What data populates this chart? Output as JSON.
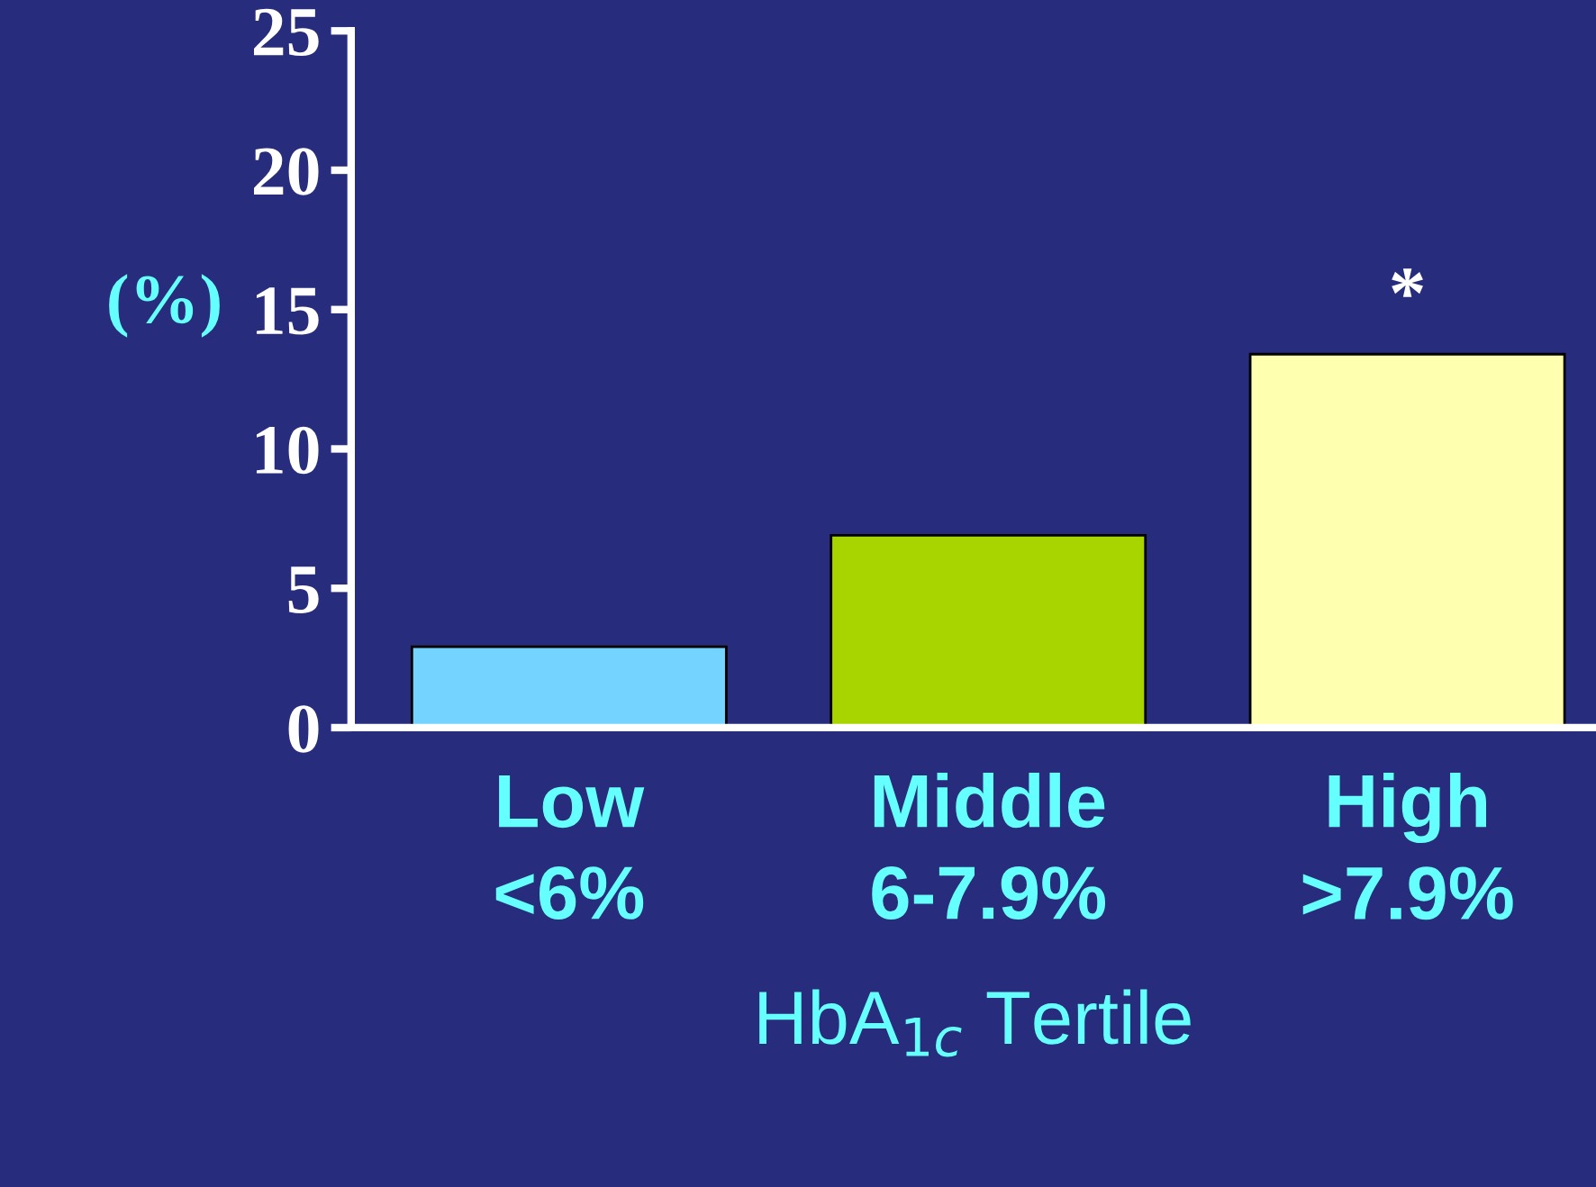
{
  "chart_data": {
    "type": "bar",
    "categories": [
      "Low\n<6%",
      "Middle\n6-7.9%",
      "High\n>7.9%"
    ],
    "values": [
      2.9,
      6.9,
      13.4
    ],
    "colors": [
      "#74d4ff",
      "#a8d400",
      "#ffffb0"
    ],
    "ylabel": "(%)",
    "xlabel": "HbA$_{1c}$ Tertile",
    "ylim": [
      0,
      25
    ],
    "yticks": [
      0,
      5,
      10,
      15,
      20,
      25
    ],
    "grid": false,
    "legend": false,
    "annotations": [
      {
        "text": "*",
        "x": "High\n>7.9%",
        "y": 13.4
      }
    ]
  }
}
